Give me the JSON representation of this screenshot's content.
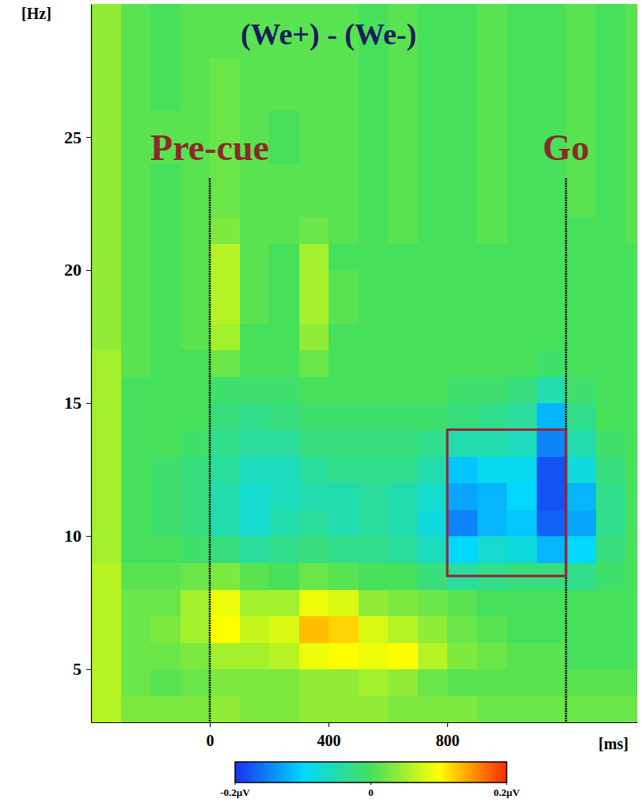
{
  "chart_data": {
    "type": "heatmap",
    "title": "(We+) - (We-)",
    "x_label": "[ms]",
    "y_label": "[Hz]",
    "x": [
      -350,
      -250,
      -150,
      -50,
      50,
      150,
      250,
      350,
      450,
      550,
      650,
      750,
      850,
      950,
      1050,
      1150,
      1250,
      1350,
      1450
    ],
    "y": [
      3.5,
      4.5,
      5.5,
      6.5,
      7.5,
      8.5,
      9.5,
      10.5,
      11.5,
      12.5,
      13.5,
      14.5,
      15.5,
      16.5,
      17.5,
      18.5,
      19.5,
      20.5,
      21.5,
      22.5,
      23.5,
      24.5,
      25.5,
      26.5,
      27.5,
      28.5,
      29.5
    ],
    "values": [
      [
        0.06,
        0.03,
        0.03,
        0.03,
        0.04,
        0.03,
        0.03,
        0.04,
        0.04,
        0.04,
        0.03,
        0.03,
        0.03,
        0.02,
        0.02,
        0.02,
        0.02,
        0.02,
        0.02
      ],
      [
        0.06,
        0.02,
        0.01,
        0.02,
        0.03,
        0.03,
        0.03,
        0.04,
        0.04,
        0.05,
        0.04,
        0.02,
        0.01,
        0.01,
        0.01,
        0.01,
        0.01,
        0.01,
        0.01
      ],
      [
        0.06,
        0.02,
        0.02,
        0.03,
        0.05,
        0.05,
        0.06,
        0.09,
        0.1,
        0.09,
        0.1,
        0.06,
        0.03,
        0.02,
        0.01,
        0.01,
        0,
        0,
        0
      ],
      [
        0.06,
        0.02,
        0.03,
        0.05,
        0.1,
        0.07,
        0.08,
        0.13,
        0.12,
        0.08,
        0.06,
        0.04,
        0.02,
        0.01,
        0,
        0,
        0,
        0,
        0
      ],
      [
        0.06,
        0.02,
        0.02,
        0.05,
        0.09,
        0.05,
        0.05,
        0.09,
        0.08,
        0.04,
        0.03,
        0.02,
        0.01,
        0,
        0,
        0,
        0,
        0,
        0
      ],
      [
        0.06,
        0.01,
        0.01,
        0.02,
        0.03,
        0.01,
        0,
        0.02,
        0.01,
        0,
        0,
        -0.02,
        -0.04,
        -0.03,
        -0.02,
        -0.02,
        -0.03,
        -0.01,
        0
      ],
      [
        0.05,
        0,
        0,
        -0.01,
        -0.02,
        -0.04,
        -0.03,
        -0.02,
        -0.03,
        -0.03,
        -0.04,
        -0.06,
        -0.1,
        -0.07,
        -0.08,
        -0.12,
        -0.1,
        -0.02,
        0
      ],
      [
        0.05,
        0,
        -0.01,
        -0.02,
        -0.05,
        -0.07,
        -0.05,
        -0.04,
        -0.05,
        -0.04,
        -0.05,
        -0.08,
        -0.15,
        -0.12,
        -0.11,
        -0.17,
        -0.13,
        -0.03,
        0
      ],
      [
        0.05,
        0,
        -0.01,
        -0.02,
        -0.05,
        -0.07,
        -0.06,
        -0.05,
        -0.05,
        -0.04,
        -0.05,
        -0.07,
        -0.13,
        -0.12,
        -0.1,
        -0.18,
        -0.12,
        -0.03,
        0
      ],
      [
        0.05,
        0,
        -0.01,
        -0.02,
        -0.04,
        -0.06,
        -0.06,
        -0.04,
        -0.03,
        -0.03,
        -0.03,
        -0.05,
        -0.11,
        -0.09,
        -0.09,
        -0.18,
        -0.08,
        -0.02,
        0
      ],
      [
        0.05,
        0,
        0,
        -0.01,
        -0.03,
        -0.04,
        -0.04,
        -0.02,
        -0.02,
        -0.02,
        -0.02,
        -0.03,
        -0.05,
        -0.05,
        -0.06,
        -0.15,
        -0.05,
        -0.01,
        0
      ],
      [
        0.05,
        0,
        0,
        0,
        -0.02,
        -0.03,
        -0.02,
        -0.01,
        -0.01,
        -0.01,
        -0.01,
        -0.01,
        -0.02,
        -0.03,
        -0.04,
        -0.12,
        -0.03,
        0,
        0
      ],
      [
        0.05,
        0,
        0,
        0,
        -0.01,
        -0.01,
        -0.01,
        0,
        0,
        0,
        0,
        0,
        -0.01,
        -0.01,
        -0.02,
        -0.05,
        -0.01,
        0,
        0
      ],
      [
        0.05,
        0.01,
        0,
        0,
        0.02,
        0,
        0,
        0.02,
        0,
        0,
        0,
        0,
        0,
        0,
        0,
        -0.01,
        0,
        0,
        0
      ],
      [
        0.04,
        0.01,
        0,
        0.01,
        0.05,
        0,
        0,
        0.04,
        0,
        0,
        0,
        0,
        0,
        0,
        0,
        0,
        0,
        0,
        0
      ],
      [
        0.04,
        0.01,
        0,
        0.01,
        0.06,
        0.01,
        0,
        0.05,
        0.01,
        0,
        0,
        0,
        0,
        0,
        0,
        0,
        0,
        0,
        0
      ],
      [
        0.04,
        0.01,
        0,
        0.01,
        0.06,
        0.01,
        0,
        0.05,
        0.01,
        0,
        0,
        0,
        0,
        0,
        0,
        0,
        0,
        0,
        0
      ],
      [
        0.04,
        0.01,
        0,
        0.01,
        0.06,
        0.01,
        0,
        0.05,
        0,
        0,
        0,
        0,
        0,
        0,
        0,
        0,
        0,
        0,
        0
      ],
      [
        0.04,
        0.01,
        0,
        0.01,
        0.03,
        0.01,
        0.01,
        0.02,
        0.01,
        0,
        0.01,
        0,
        0,
        0.01,
        0,
        0,
        0,
        0,
        0.01
      ],
      [
        0.04,
        0.01,
        0,
        0.01,
        0.02,
        0.01,
        0.01,
        0.01,
        0.01,
        0,
        0.01,
        0,
        0,
        0.01,
        0,
        0,
        0.01,
        0,
        0.01
      ],
      [
        0.04,
        0.01,
        0,
        0.01,
        0.02,
        0.01,
        0.01,
        0.01,
        0.01,
        0,
        0.01,
        0,
        0,
        0.01,
        0,
        0,
        0.01,
        0,
        0.01
      ],
      [
        0.04,
        0.01,
        0.01,
        0.01,
        0.02,
        0.01,
        0,
        0.01,
        0.01,
        0,
        0.01,
        0,
        0,
        0.01,
        0,
        0,
        0.01,
        0,
        0.01
      ],
      [
        0.04,
        0.01,
        0.01,
        0.01,
        0.02,
        0.01,
        0,
        0.01,
        0.01,
        0,
        0.01,
        0,
        0,
        0.01,
        0,
        0,
        0.01,
        0,
        0.01
      ],
      [
        0.04,
        0.01,
        0,
        0.01,
        0.02,
        0.01,
        0.01,
        0.01,
        0.01,
        0,
        0.01,
        0,
        0,
        0.01,
        0,
        0,
        0.01,
        0,
        0.01
      ],
      [
        0.04,
        0.01,
        0,
        0.01,
        0.02,
        0.01,
        0.01,
        0.01,
        0.01,
        0,
        0.01,
        0,
        0,
        0.01,
        0,
        0,
        0.01,
        0,
        0.01
      ],
      [
        0.04,
        0.01,
        0,
        0.01,
        0.01,
        0.01,
        0.01,
        0.01,
        0.01,
        0,
        0.01,
        0,
        0,
        0.01,
        0,
        0,
        0.01,
        0,
        0.01
      ],
      [
        0.04,
        0.01,
        0,
        0.01,
        0.01,
        0.01,
        0.01,
        0.01,
        0.01,
        0,
        0.01,
        0,
        0,
        0.01,
        0,
        0,
        0.01,
        0,
        0.01
      ]
    ],
    "xlim": [
      -400,
      1440
    ],
    "ylim": [
      3,
      30
    ],
    "xticks": [
      0,
      400,
      800
    ],
    "yticks": [
      5,
      10,
      15,
      20,
      25
    ],
    "colorbar": {
      "range": [
        -0.2,
        0.2
      ],
      "ticks": [
        {
          "value": -0.2,
          "label": "-0.2µV"
        },
        0,
        {
          "value": 0.2,
          "label": "0.2µV"
        }
      ]
    },
    "annotations": [
      {
        "text": "Pre-cue",
        "x": 0
      },
      {
        "text": "Go",
        "x": 1200
      }
    ],
    "region": {
      "x": [
        800,
        1200
      ],
      "y": [
        8.5,
        14
      ]
    }
  }
}
